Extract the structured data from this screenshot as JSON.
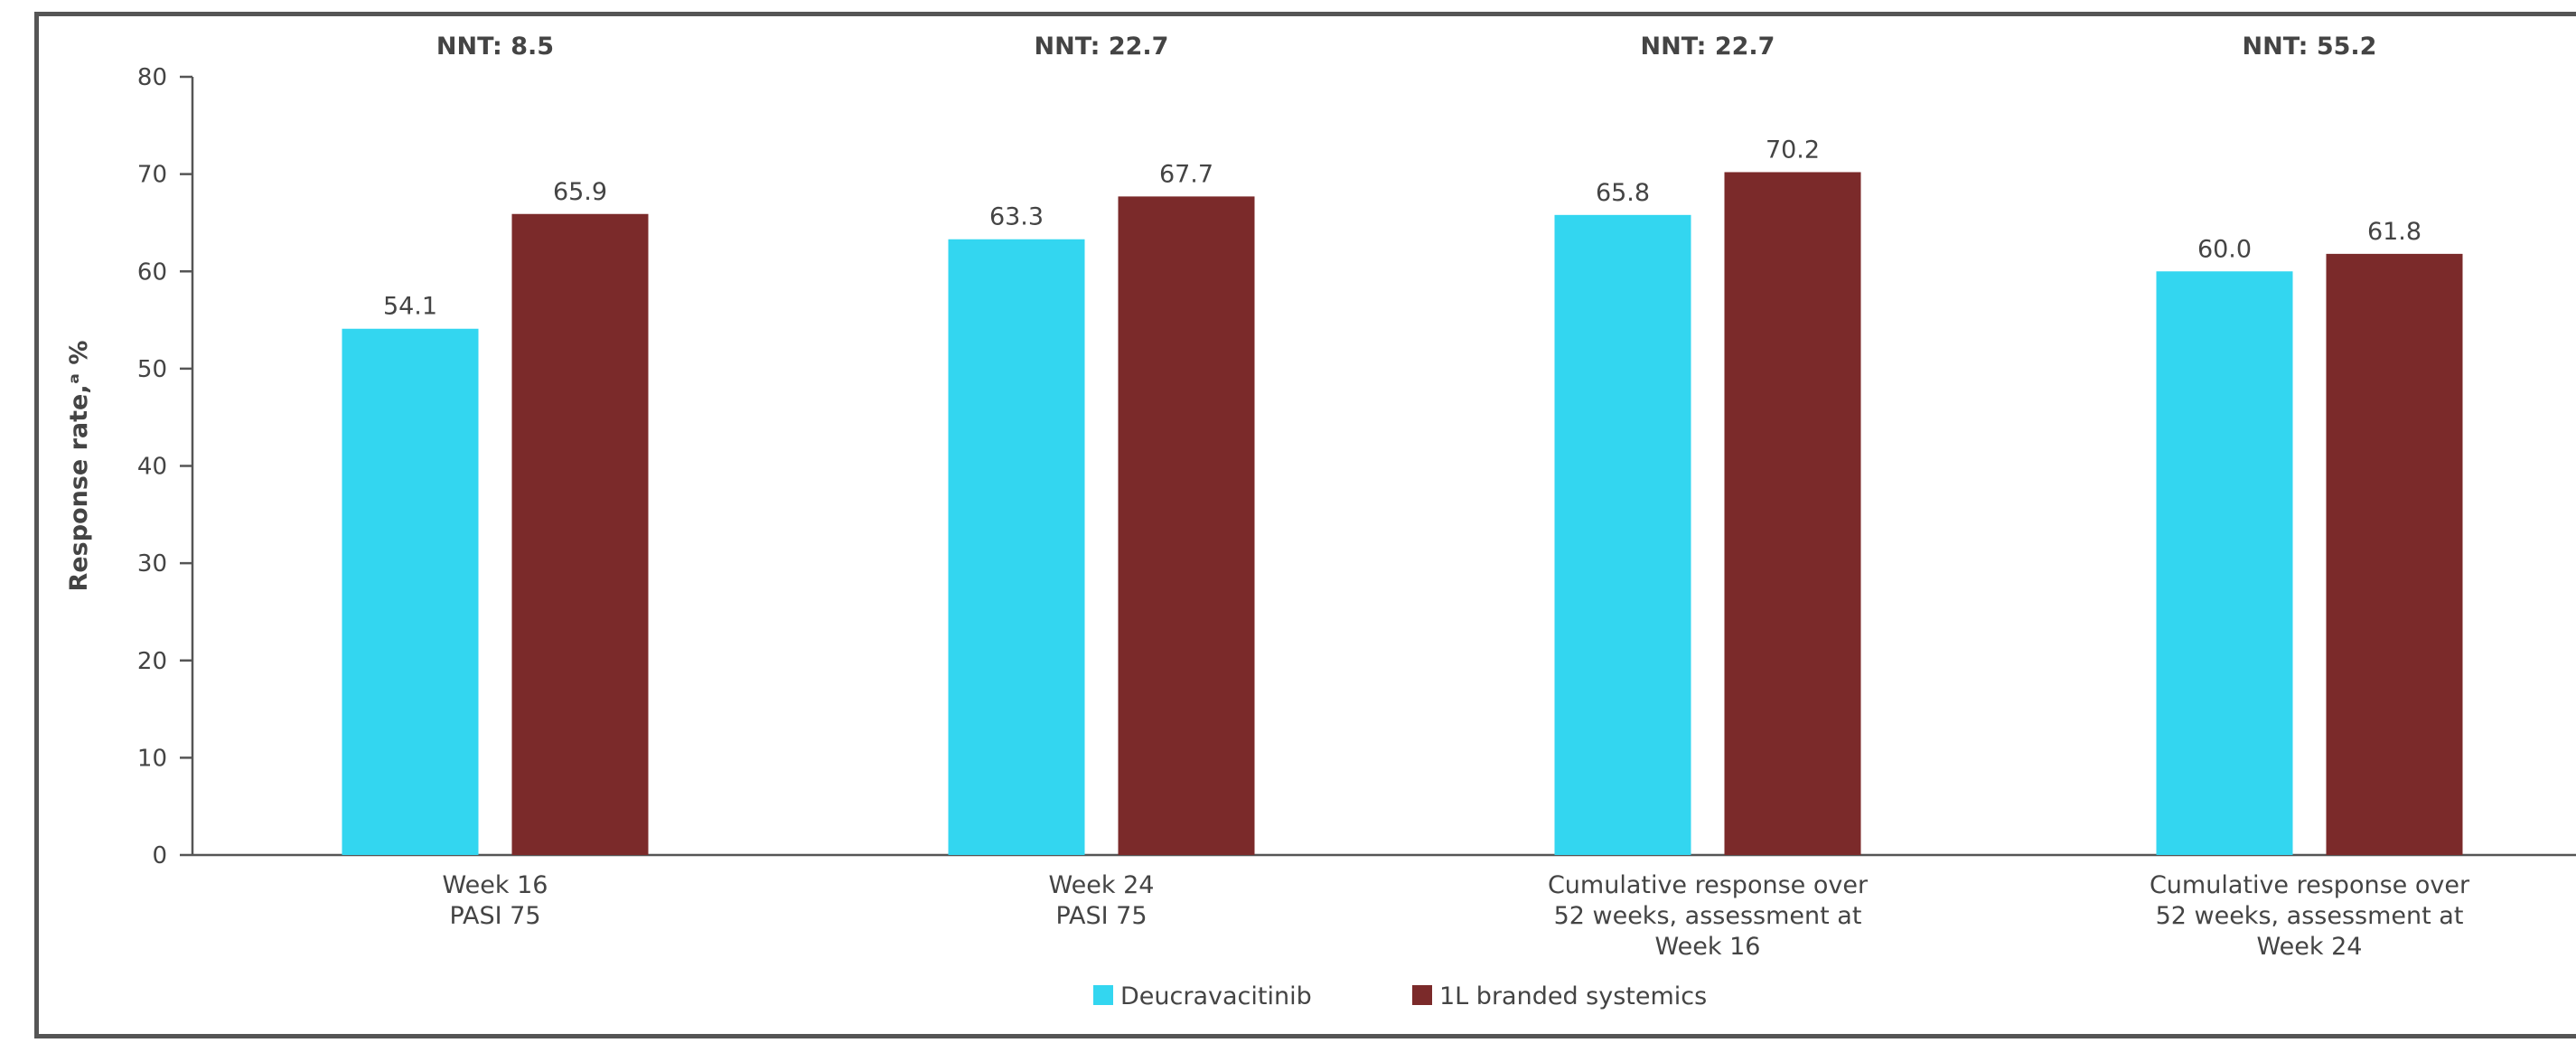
{
  "chart_data": {
    "type": "bar",
    "title": "",
    "ylabel": "Response rate,ᵃ %",
    "xlabel": "",
    "ylim": [
      0,
      80
    ],
    "yticks": [
      0,
      10,
      20,
      30,
      40,
      50,
      60,
      70,
      80
    ],
    "categories": [
      [
        "Week 16",
        "PASI 75"
      ],
      [
        "Week 24",
        "PASI 75"
      ],
      [
        "Cumulative response over",
        "52 weeks, assessment at",
        "Week 16"
      ],
      [
        "Cumulative response over",
        "52 weeks, assessment at",
        "Week 24"
      ]
    ],
    "nnt": [
      "NNT: 8.5",
      "NNT: 22.7",
      "NNT: 22.7",
      "NNT: 55.2"
    ],
    "series": [
      {
        "name": "Deucravacitinib",
        "color": "#33D6F0",
        "values": [
          54.1,
          63.3,
          65.8,
          60.0
        ],
        "labels": [
          "54.1",
          "63.3",
          "65.8",
          "60.0"
        ]
      },
      {
        "name": "1L branded systemics",
        "color": "#7B2A2A",
        "values": [
          65.9,
          67.7,
          70.2,
          61.8
        ],
        "labels": [
          "65.9",
          "67.7",
          "70.2",
          "61.8"
        ]
      }
    ],
    "grid": false,
    "legend": "bottom-center"
  }
}
